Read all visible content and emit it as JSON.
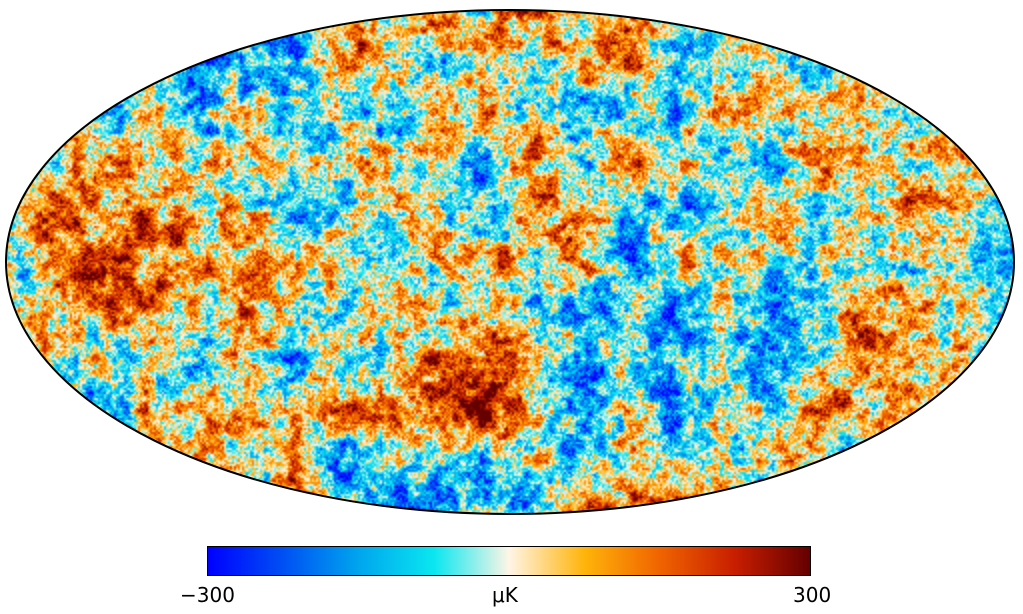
{
  "colorbar": {
    "min_label": "−300",
    "unit_label": "μK",
    "max_label": "300",
    "min_value": -300,
    "max_value": 300,
    "colors": [
      "#0000ff",
      "#0050f4",
      "#00a5ee",
      "#0ae6f0",
      "#fff5e6",
      "#ffb40a",
      "#f06400",
      "#c81e00",
      "#640000"
    ]
  },
  "map": {
    "projection": "mollweide",
    "outline_color": "#000000"
  }
}
